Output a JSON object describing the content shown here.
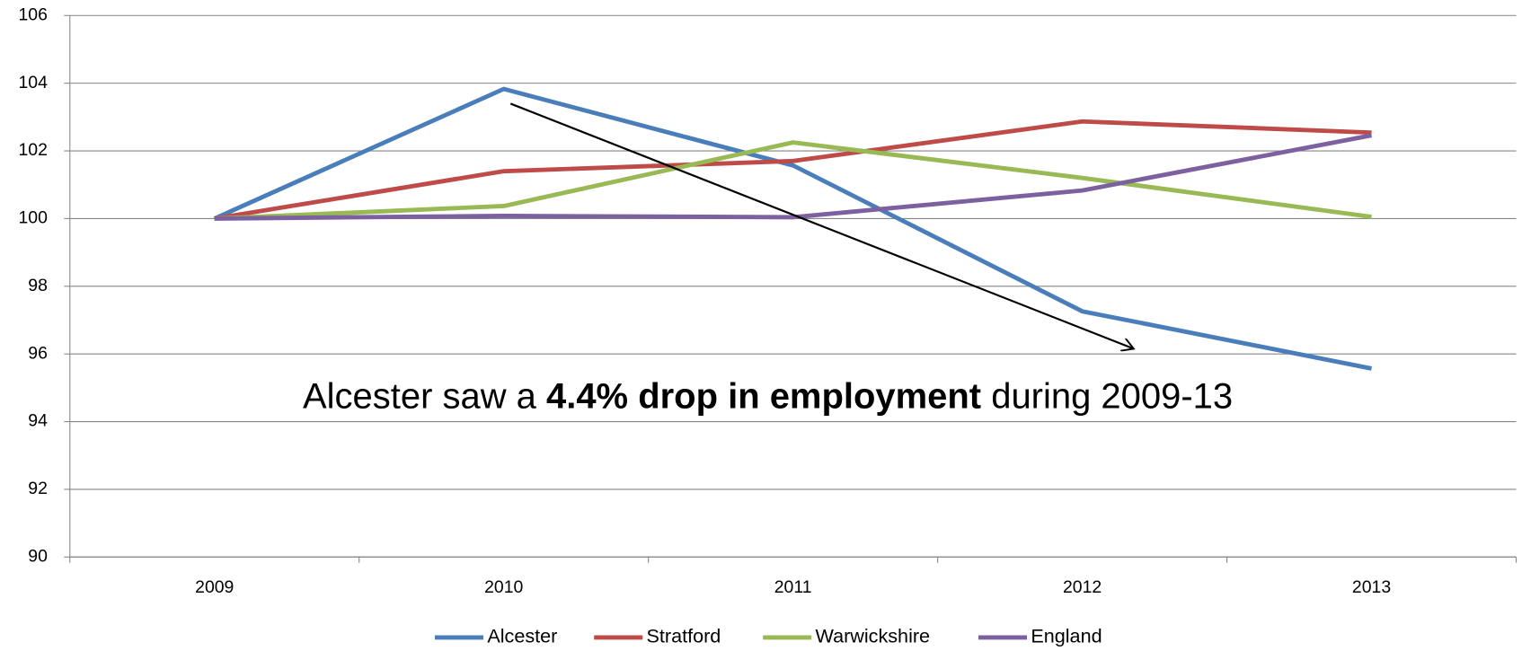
{
  "chart_data": {
    "type": "line",
    "categories": [
      "2009",
      "2010",
      "2011",
      "2012",
      "2013"
    ],
    "series": [
      {
        "name": "Alcester",
        "color": "#4a7ebb",
        "values": [
          100,
          103.83,
          101.57,
          97.26,
          95.57
        ]
      },
      {
        "name": "Stratford",
        "color": "#be4b48",
        "values": [
          100,
          101.4,
          101.7,
          102.87,
          102.54
        ]
      },
      {
        "name": "Warwickshire",
        "color": "#98b954",
        "values": [
          100,
          100.37,
          102.25,
          101.2,
          100.05
        ]
      },
      {
        "name": "England",
        "color": "#7d60a0",
        "values": [
          100,
          100.08,
          100.04,
          100.83,
          102.46
        ]
      }
    ],
    "ylim": [
      90,
      106
    ],
    "yticks": [
      90,
      92,
      94,
      96,
      98,
      100,
      102,
      104,
      106
    ],
    "grid": true,
    "legend": "bottom",
    "annotation": {
      "before": "Alcester saw a ",
      "bold": "4.4% drop in employment",
      "after": " during 2009-13"
    }
  }
}
